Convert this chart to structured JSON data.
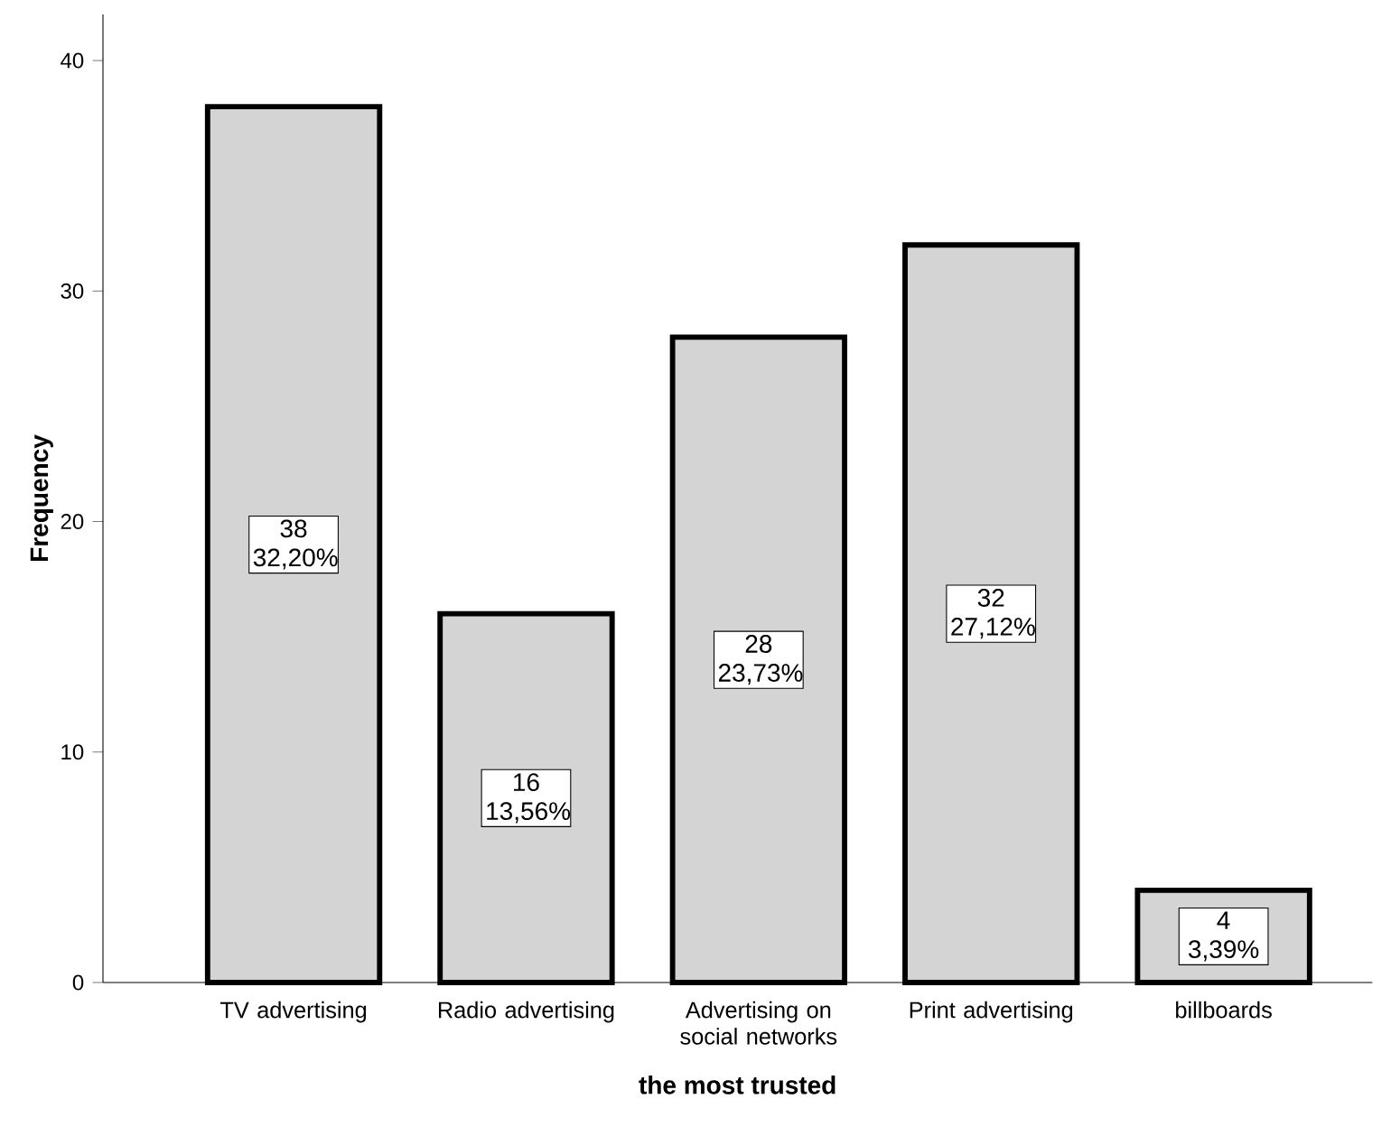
{
  "chart_data": {
    "type": "bar",
    "xlabel": "the most trusted",
    "ylabel": "Frequency",
    "categories": [
      "TV advertising",
      "Radio advertising",
      "Advertising on social networks",
      "Print advertising",
      "billboards"
    ],
    "values": [
      38,
      16,
      28,
      32,
      4
    ],
    "value_labels": [
      "38 32,20%",
      "16 13,56%",
      "28 23,73%",
      "32 27,12%",
      "4 3,39%"
    ],
    "color": "#d4d4d4",
    "ylim": [
      0,
      42
    ],
    "yticks": [
      0,
      10,
      20,
      30,
      40
    ]
  }
}
